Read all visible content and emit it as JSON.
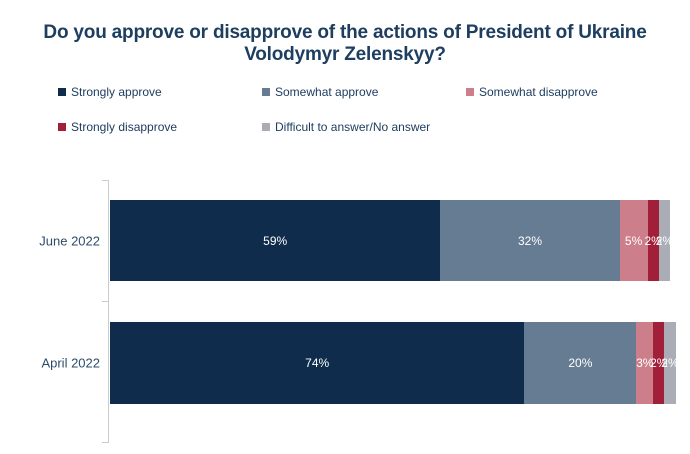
{
  "title": "Do you approve or disapprove of the actions of President of Ukraine Volodymyr Zelenskyy?",
  "chart_data": {
    "type": "bar",
    "orientation": "horizontal",
    "stacked": true,
    "title": "Do you approve or disapprove of the actions of President of Ukraine Volodymyr Zelenskyy?",
    "categories": [
      "June 2022",
      "April 2022"
    ],
    "series": [
      {
        "name": "Strongly approve",
        "color": "#0f2c4c",
        "values": [
          59,
          74
        ]
      },
      {
        "name": "Somewhat approve",
        "color": "#667c93",
        "values": [
          32,
          20
        ]
      },
      {
        "name": "Somewhat disapprove",
        "color": "#cc7f8b",
        "values": [
          5,
          3
        ]
      },
      {
        "name": "Strongly disapprove",
        "color": "#a21f3a",
        "values": [
          2,
          2
        ]
      },
      {
        "name": "Difficult to answer/No answer",
        "color": "#aaadb5",
        "values": [
          2,
          2
        ]
      }
    ],
    "value_labels": [
      [
        "59%",
        "32%",
        "5%",
        "2%",
        "2%"
      ],
      [
        "74%",
        "20%",
        "3%",
        "2%",
        "2%"
      ]
    ],
    "xlim": [
      0,
      100
    ],
    "unit": "%",
    "legend_position": "top",
    "grid": false
  },
  "colors": {
    "title_text": "#1e3e60",
    "legend_text": "#1e3e60",
    "category_text": "#2d4c6b",
    "value_text": "#ffffff",
    "axis_line": "#c9ccd1",
    "background": "#ffffff"
  }
}
